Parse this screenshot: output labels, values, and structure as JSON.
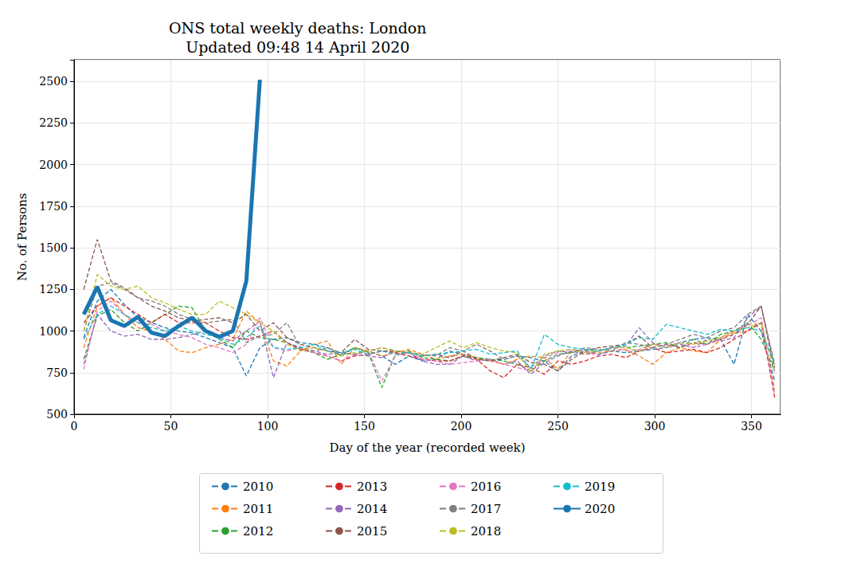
{
  "chart_data": {
    "type": "line",
    "title": "ONS total weekly deaths: London",
    "subtitle": "Updated 09:48 14 April 2020",
    "x_label": "Day of the year (recorded week)",
    "y_label": "No. of Persons",
    "xlim": [
      0,
      365
    ],
    "xticks": [
      0,
      50,
      100,
      150,
      200,
      250,
      300,
      350
    ],
    "ylim": [
      500,
      2630
    ],
    "yticks": [
      500,
      750,
      1000,
      1250,
      1500,
      1750,
      2000,
      2250,
      2500
    ],
    "grid": true,
    "legend": "bottom",
    "x": [
      5,
      12,
      19,
      26,
      33,
      40,
      47,
      54,
      61,
      68,
      75,
      82,
      89,
      96,
      103,
      110,
      117,
      124,
      131,
      138,
      145,
      152,
      159,
      166,
      173,
      180,
      187,
      194,
      201,
      208,
      215,
      222,
      229,
      236,
      243,
      250,
      257,
      264,
      271,
      278,
      285,
      292,
      299,
      306,
      313,
      320,
      327,
      334,
      341,
      348,
      355,
      362
    ],
    "series": [
      {
        "name": "2010",
        "color": "#1f77b4",
        "line_style": "dashed",
        "values": [
          960,
          1180,
          1250,
          1160,
          1080,
          1050,
          1020,
          1000,
          990,
          960,
          930,
          900,
          730,
          900,
          950,
          960,
          930,
          920,
          900,
          850,
          900,
          880,
          850,
          800,
          850,
          820,
          830,
          880,
          860,
          840,
          820,
          830,
          850,
          840,
          820,
          760,
          850,
          880,
          860,
          880,
          870,
          880,
          890,
          900,
          930,
          950,
          960,
          950,
          800,
          1100,
          1000,
          700
        ]
      },
      {
        "name": "2011",
        "color": "#ff7f0e",
        "line_style": "dashed",
        "values": [
          900,
          1150,
          1200,
          1100,
          1020,
          1000,
          950,
          880,
          870,
          900,
          920,
          950,
          1120,
          1050,
          820,
          790,
          880,
          920,
          940,
          800,
          900,
          880,
          850,
          870,
          890,
          860,
          830,
          850,
          860,
          840,
          820,
          800,
          830,
          850,
          840,
          770,
          880,
          860,
          870,
          880,
          890,
          850,
          800,
          870,
          900,
          880,
          870,
          950,
          990,
          1000,
          1050,
          650
        ]
      },
      {
        "name": "2012",
        "color": "#2ca02c",
        "line_style": "dashed",
        "values": [
          830,
          1090,
          1130,
          1050,
          1000,
          1050,
          1100,
          1150,
          1140,
          1000,
          950,
          900,
          1000,
          960,
          950,
          930,
          890,
          870,
          830,
          860,
          900,
          870,
          660,
          860,
          880,
          840,
          830,
          820,
          850,
          840,
          830,
          820,
          800,
          760,
          820,
          860,
          870,
          890,
          880,
          900,
          900,
          910,
          920,
          930,
          900,
          950,
          920,
          980,
          1000,
          1050,
          950,
          760
        ]
      },
      {
        "name": "2013",
        "color": "#d62728",
        "line_style": "dashed",
        "values": [
          1050,
          1150,
          1200,
          1150,
          1100,
          1050,
          1100,
          1050,
          1050,
          1050,
          1000,
          960,
          950,
          970,
          1000,
          930,
          890,
          870,
          850,
          820,
          850,
          860,
          880,
          870,
          850,
          830,
          820,
          820,
          850,
          830,
          760,
          720,
          800,
          780,
          740,
          820,
          800,
          820,
          850,
          860,
          840,
          880,
          900,
          870,
          880,
          890,
          870,
          900,
          950,
          1000,
          1050,
          600
        ]
      },
      {
        "name": "2014",
        "color": "#9467bd",
        "line_style": "dashed",
        "values": [
          800,
          1100,
          1000,
          970,
          980,
          950,
          950,
          960,
          980,
          1000,
          960,
          940,
          1000,
          1060,
          720,
          930,
          900,
          880,
          860,
          870,
          860,
          850,
          840,
          880,
          870,
          820,
          800,
          800,
          850,
          820,
          830,
          800,
          820,
          740,
          810,
          850,
          880,
          860,
          880,
          900,
          910,
          1020,
          930,
          900,
          920,
          900,
          950,
          940,
          960,
          1080,
          1150,
          750
        ]
      },
      {
        "name": "2015",
        "color": "#8c564b",
        "line_style": "dashed",
        "values": [
          1250,
          1550,
          1300,
          1260,
          1200,
          1150,
          1120,
          1080,
          1060,
          1070,
          1080,
          1050,
          1100,
          1000,
          1050,
          960,
          920,
          900,
          880,
          870,
          950,
          890,
          880,
          880,
          870,
          850,
          860,
          840,
          880,
          830,
          820,
          840,
          860,
          810,
          800,
          760,
          830,
          880,
          900,
          910,
          920,
          970,
          900,
          920,
          900,
          930,
          920,
          950,
          980,
          1040,
          1150,
          780
        ]
      },
      {
        "name": "2016",
        "color": "#e377c2",
        "line_style": "dashed",
        "values": [
          770,
          1120,
          1180,
          1100,
          1050,
          1040,
          1000,
          980,
          960,
          920,
          900,
          870,
          920,
          1080,
          900,
          880,
          900,
          870,
          850,
          820,
          860,
          880,
          700,
          850,
          870,
          830,
          820,
          800,
          810,
          820,
          830,
          800,
          780,
          760,
          840,
          870,
          890,
          880,
          850,
          900,
          880,
          890,
          920,
          910,
          930,
          900,
          920,
          960,
          1000,
          1030,
          1080,
          620
        ]
      },
      {
        "name": "2017",
        "color": "#7f7f7f",
        "line_style": "dashed",
        "values": [
          1000,
          1270,
          1290,
          1250,
          1200,
          1180,
          1150,
          1100,
          1070,
          1050,
          1060,
          1070,
          930,
          970,
          980,
          1050,
          900,
          880,
          900,
          870,
          860,
          880,
          900,
          880,
          870,
          860,
          850,
          900,
          880,
          920,
          880,
          830,
          850,
          780,
          850,
          880,
          870,
          900,
          890,
          880,
          930,
          920,
          900,
          920,
          950,
          980,
          960,
          1000,
          1020,
          1100,
          1150,
          800
        ]
      },
      {
        "name": "2018",
        "color": "#bcbd22",
        "line_style": "dashed",
        "values": [
          1000,
          1340,
          1270,
          1250,
          1270,
          1200,
          1170,
          1130,
          1100,
          1100,
          1180,
          1140,
          1100,
          1050,
          1000,
          920,
          880,
          900,
          880,
          850,
          870,
          880,
          900,
          880,
          870,
          860,
          900,
          940,
          900,
          930,
          900,
          880,
          870,
          750,
          860,
          880,
          890,
          870,
          880,
          900,
          900,
          880,
          920,
          900,
          930,
          920,
          940,
          960,
          1000,
          1020,
          1050,
          750
        ]
      },
      {
        "name": "2019",
        "color": "#17becf",
        "line_style": "dashed",
        "values": [
          950,
          1100,
          1150,
          1100,
          1050,
          1020,
          1000,
          1030,
          1000,
          980,
          960,
          920,
          960,
          1030,
          900,
          890,
          900,
          920,
          880,
          870,
          890,
          860,
          880,
          860,
          870,
          850,
          860,
          870,
          880,
          890,
          860,
          870,
          880,
          770,
          980,
          920,
          900,
          890,
          880,
          900,
          920,
          960,
          950,
          1040,
          1020,
          1000,
          980,
          1010,
          1000,
          1020,
          1000,
          800
        ]
      },
      {
        "name": "2020",
        "color": "#1a76b2",
        "line_style": "solid",
        "values": [
          1100,
          1265,
          1065,
          1030,
          1085,
          990,
          970,
          1030,
          1080,
          1000,
          965,
          1000,
          1300,
          2510,
          null,
          null,
          null,
          null,
          null,
          null,
          null,
          null,
          null,
          null,
          null,
          null,
          null,
          null,
          null,
          null,
          null,
          null,
          null,
          null,
          null,
          null,
          null,
          null,
          null,
          null,
          null,
          null,
          null,
          null,
          null,
          null,
          null,
          null,
          null,
          null,
          null,
          null
        ]
      }
    ]
  }
}
